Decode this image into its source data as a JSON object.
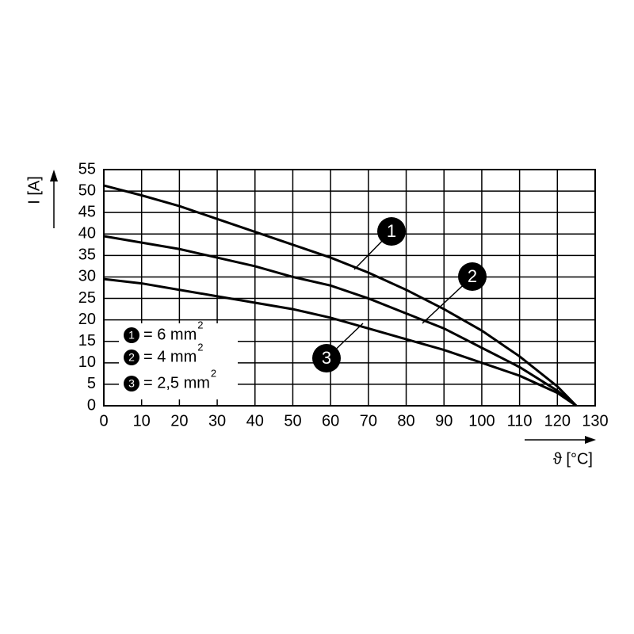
{
  "chart_data": {
    "type": "line",
    "x_label": "ϑ [°C]",
    "y_label": "I [A]",
    "x": [
      0,
      10,
      20,
      30,
      40,
      50,
      60,
      70,
      80,
      90,
      100,
      110,
      120,
      125
    ],
    "series": [
      {
        "marker": "1",
        "name": "= 6 mm",
        "superscript": "2",
        "color": "#000000",
        "values": [
          51.3,
          49,
          46.5,
          43.5,
          40.5,
          37.5,
          34.5,
          31,
          27,
          22.5,
          17.5,
          11.5,
          4.5,
          0
        ]
      },
      {
        "marker": "2",
        "name": "= 4 mm",
        "superscript": "2",
        "color": "#000000",
        "values": [
          39.5,
          38,
          36.5,
          34.5,
          32.5,
          30,
          28,
          25,
          21.5,
          18,
          13.5,
          9,
          3.5,
          0
        ]
      },
      {
        "marker": "3",
        "name": "= 2,5 mm",
        "superscript": "2",
        "color": "#000000",
        "values": [
          29.5,
          28.5,
          27,
          25.5,
          24,
          22.5,
          20.5,
          18,
          15.5,
          13,
          10,
          7,
          3,
          0
        ]
      }
    ],
    "xlim": [
      0,
      130
    ],
    "ylim": [
      0,
      55
    ],
    "xticks": [
      0,
      10,
      20,
      30,
      40,
      50,
      60,
      70,
      80,
      90,
      100,
      110,
      120,
      130
    ],
    "yticks": [
      0,
      5,
      10,
      15,
      20,
      25,
      30,
      35,
      40,
      45,
      50,
      55
    ],
    "grid": true
  }
}
